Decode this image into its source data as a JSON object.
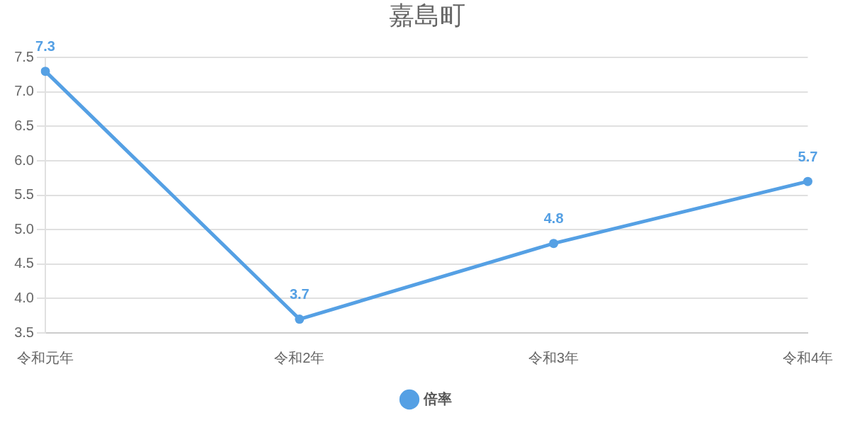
{
  "chart_data": {
    "type": "line",
    "title": "嘉島町",
    "categories": [
      "令和元年",
      "令和2年",
      "令和3年",
      "令和4年"
    ],
    "series": [
      {
        "name": "倍率",
        "color": "#55a0e4",
        "values": [
          7.3,
          3.7,
          4.8,
          5.7
        ]
      }
    ],
    "ylim": [
      3.5,
      7.5
    ],
    "yticks": [
      {
        "value": 3.5,
        "label": "3.5"
      },
      {
        "value": 4,
        "label": "4.0"
      },
      {
        "value": 4.5,
        "label": "4.5"
      },
      {
        "value": 5,
        "label": "5.0"
      },
      {
        "value": 5.5,
        "label": "5.5"
      },
      {
        "value": 6,
        "label": "6.0"
      },
      {
        "value": 6.5,
        "label": "6.5"
      },
      {
        "value": 7,
        "label": "7.0"
      },
      {
        "value": 7.5,
        "label": "7.5"
      }
    ],
    "grid": "y",
    "legend": "bottom",
    "marker": "circle",
    "data_labels": true
  }
}
